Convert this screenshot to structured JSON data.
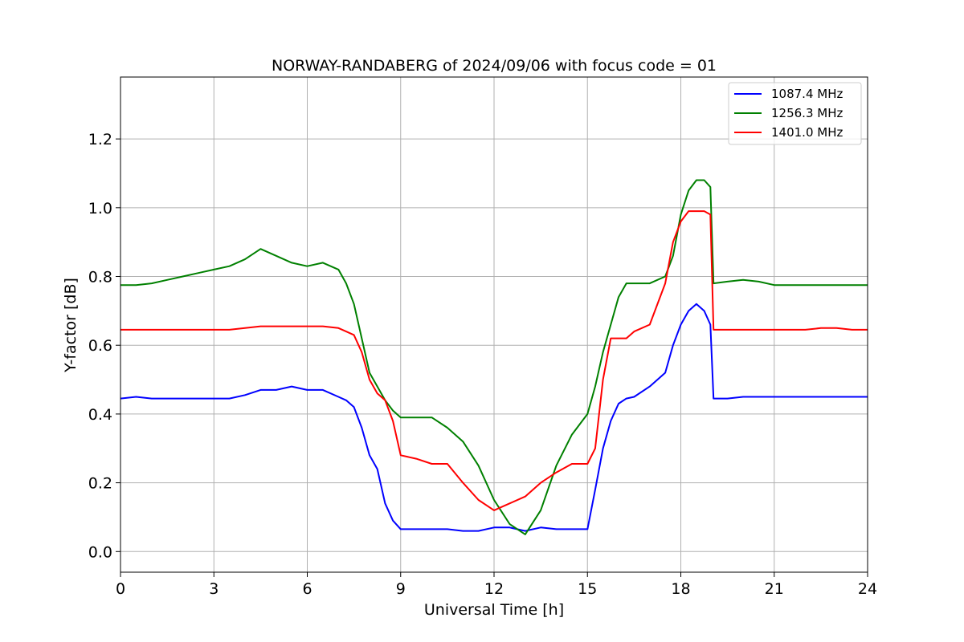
{
  "chart_data": {
    "type": "line",
    "title": "NORWAY-RANDABERG of 2024/09/06 with focus code = 01",
    "xlabel": "Universal Time [h]",
    "ylabel": "Y-factor [dB]",
    "xlim": [
      0,
      24
    ],
    "ylim": [
      -0.06,
      1.38
    ],
    "xticks": [
      0,
      3,
      6,
      9,
      12,
      15,
      18,
      21,
      24
    ],
    "yticks": [
      0.0,
      0.2,
      0.4,
      0.6,
      0.8,
      1.0,
      1.2
    ],
    "xtick_labels": [
      "0",
      "3",
      "6",
      "9",
      "12",
      "15",
      "18",
      "21",
      "24"
    ],
    "ytick_labels": [
      "0.0",
      "0.2",
      "0.4",
      "0.6",
      "0.8",
      "1.0",
      "1.2"
    ],
    "grid": true,
    "legend_position": "top-right",
    "series": [
      {
        "name": "1087.4 MHz",
        "color": "#0000ff",
        "x": [
          0,
          0.5,
          1,
          1.5,
          2,
          2.5,
          3,
          3.5,
          4,
          4.5,
          5,
          5.5,
          6,
          6.5,
          7,
          7.25,
          7.5,
          7.75,
          8,
          8.25,
          8.5,
          8.75,
          9,
          9.5,
          10,
          10.5,
          11,
          11.5,
          12,
          12.5,
          13,
          13.5,
          14,
          14.5,
          15,
          15.25,
          15.5,
          15.75,
          16,
          16.25,
          16.5,
          17,
          17.5,
          17.75,
          18,
          18.25,
          18.5,
          18.75,
          18.95,
          19.05,
          19.5,
          20,
          20.5,
          21,
          21.5,
          22,
          22.5,
          23,
          23.5,
          24
        ],
        "y": [
          0.445,
          0.45,
          0.445,
          0.445,
          0.445,
          0.445,
          0.445,
          0.445,
          0.455,
          0.47,
          0.47,
          0.48,
          0.47,
          0.47,
          0.45,
          0.44,
          0.42,
          0.36,
          0.28,
          0.24,
          0.14,
          0.09,
          0.065,
          0.065,
          0.065,
          0.065,
          0.06,
          0.06,
          0.07,
          0.07,
          0.06,
          0.07,
          0.065,
          0.065,
          0.065,
          0.18,
          0.3,
          0.38,
          0.43,
          0.445,
          0.45,
          0.48,
          0.52,
          0.6,
          0.66,
          0.7,
          0.72,
          0.7,
          0.66,
          0.445,
          0.445,
          0.45,
          0.45,
          0.45,
          0.45,
          0.45,
          0.45,
          0.45,
          0.45,
          0.45
        ]
      },
      {
        "name": "1256.3 MHz",
        "color": "#008000",
        "x": [
          0,
          0.5,
          1,
          1.5,
          2,
          2.5,
          3,
          3.5,
          4,
          4.5,
          5,
          5.5,
          6,
          6.5,
          7,
          7.25,
          7.5,
          7.75,
          8,
          8.25,
          8.5,
          8.75,
          9,
          9.5,
          10,
          10.5,
          11,
          11.5,
          12,
          12.5,
          13,
          13.5,
          14,
          14.5,
          15,
          15.25,
          15.5,
          15.75,
          16,
          16.25,
          16.5,
          17,
          17.5,
          17.75,
          18,
          18.25,
          18.5,
          18.75,
          18.95,
          19.05,
          19.5,
          20,
          20.5,
          21,
          21.5,
          22,
          22.5,
          23,
          23.5,
          24
        ],
        "y": [
          0.775,
          0.775,
          0.78,
          0.79,
          0.8,
          0.81,
          0.82,
          0.83,
          0.85,
          0.88,
          0.86,
          0.84,
          0.83,
          0.84,
          0.82,
          0.78,
          0.72,
          0.62,
          0.52,
          0.48,
          0.44,
          0.41,
          0.39,
          0.39,
          0.39,
          0.36,
          0.32,
          0.25,
          0.15,
          0.08,
          0.05,
          0.12,
          0.25,
          0.34,
          0.4,
          0.48,
          0.58,
          0.66,
          0.74,
          0.78,
          0.78,
          0.78,
          0.8,
          0.86,
          0.98,
          1.05,
          1.08,
          1.08,
          1.06,
          0.78,
          0.785,
          0.79,
          0.785,
          0.775,
          0.775,
          0.775,
          0.775,
          0.775,
          0.775,
          0.775
        ]
      },
      {
        "name": "1401.0 MHz",
        "color": "#ff0000",
        "x": [
          0,
          0.5,
          1,
          1.5,
          2,
          2.5,
          3,
          3.5,
          4,
          4.5,
          5,
          5.5,
          6,
          6.5,
          7,
          7.25,
          7.5,
          7.75,
          8,
          8.25,
          8.5,
          8.75,
          9,
          9.5,
          10,
          10.5,
          11,
          11.5,
          12,
          12.5,
          13,
          13.5,
          14,
          14.5,
          15,
          15.25,
          15.5,
          15.75,
          16,
          16.25,
          16.5,
          17,
          17.5,
          17.75,
          18,
          18.25,
          18.5,
          18.75,
          18.95,
          19.05,
          19.5,
          20,
          20.5,
          21,
          21.5,
          22,
          22.5,
          23,
          23.5,
          24
        ],
        "y": [
          0.645,
          0.645,
          0.645,
          0.645,
          0.645,
          0.645,
          0.645,
          0.645,
          0.65,
          0.655,
          0.655,
          0.655,
          0.655,
          0.655,
          0.65,
          0.64,
          0.63,
          0.58,
          0.5,
          0.46,
          0.44,
          0.38,
          0.28,
          0.27,
          0.255,
          0.255,
          0.2,
          0.15,
          0.12,
          0.14,
          0.16,
          0.2,
          0.23,
          0.255,
          0.255,
          0.3,
          0.5,
          0.62,
          0.62,
          0.62,
          0.64,
          0.66,
          0.78,
          0.9,
          0.96,
          0.99,
          0.99,
          0.99,
          0.98,
          0.645,
          0.645,
          0.645,
          0.645,
          0.645,
          0.645,
          0.645,
          0.65,
          0.65,
          0.645,
          0.645
        ]
      }
    ]
  }
}
